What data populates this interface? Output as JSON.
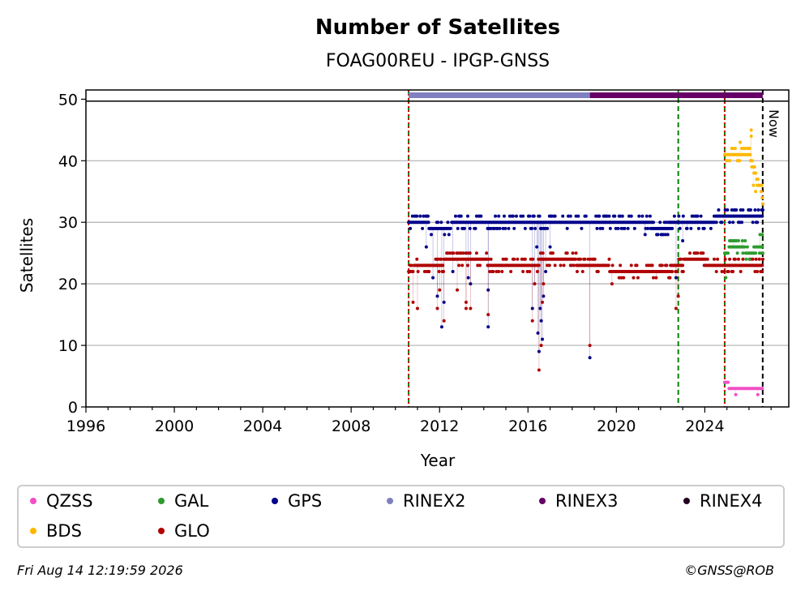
{
  "chart_data": {
    "type": "scatter",
    "title": "Number of Satellites",
    "subtitle": "FOAG00REU - IPGP-GNSS",
    "xlabel": "Year",
    "ylabel": "Satellites",
    "xlim": [
      1996,
      2027.8
    ],
    "ylim": [
      0,
      51.5
    ],
    "x_ticks": [
      "1996",
      "2000",
      "2004",
      "2008",
      "2012",
      "2016",
      "2020",
      "2024"
    ],
    "y_ticks": [
      "0",
      "10",
      "20",
      "30",
      "40",
      "50"
    ],
    "grid": "horizontal",
    "legend_position": "bottom",
    "now_label": "Now",
    "now_year": 2026.62,
    "colors": {
      "QZSS": "#f24fc6",
      "GAL": "#2e9b2e",
      "GPS": "#00008b",
      "RINEX2": "#8080c0",
      "RINEX3": "#660066",
      "RINEX4": "#220022",
      "BDS": "#ffb800",
      "GLO": "#b00000"
    },
    "events": [
      {
        "year": 2010.6,
        "color": "#008000",
        "style": "dashed"
      },
      {
        "year": 2010.6,
        "color": "#cc0000",
        "style": "dotted"
      },
      {
        "year": 2022.8,
        "color": "#008000",
        "style": "dashed"
      },
      {
        "year": 2024.9,
        "color": "#008000",
        "style": "dashed"
      },
      {
        "year": 2024.9,
        "color": "#cc0000",
        "style": "dotted"
      }
    ],
    "rinex_bars": [
      {
        "name": "RINEX2",
        "start": 2010.6,
        "end": 2018.8
      },
      {
        "name": "RINEX3",
        "start": 2018.8,
        "end": 2026.62
      }
    ],
    "series": [
      {
        "name": "GPS",
        "base": [
          [
            2010.6,
            30
          ],
          [
            2011.0,
            30
          ],
          [
            2012.0,
            29
          ],
          [
            2013.0,
            30
          ],
          [
            2014.0,
            30
          ],
          [
            2016.0,
            30
          ],
          [
            2018.0,
            30
          ],
          [
            2020.0,
            30
          ],
          [
            2021.0,
            30
          ],
          [
            2022.0,
            29
          ],
          [
            2022.8,
            30
          ],
          [
            2024.0,
            30
          ],
          [
            2024.9,
            31
          ],
          [
            2025.5,
            31
          ],
          [
            2026.62,
            31
          ]
        ],
        "spread": 1,
        "outliers": [
          [
            2011.4,
            26
          ],
          [
            2011.7,
            21
          ],
          [
            2011.9,
            18
          ],
          [
            2012.1,
            13
          ],
          [
            2012.2,
            17
          ],
          [
            2012.6,
            22
          ],
          [
            2013.2,
            25
          ],
          [
            2013.3,
            21
          ],
          [
            2013.4,
            20
          ],
          [
            2014.2,
            19
          ],
          [
            2014.2,
            13
          ],
          [
            2016.2,
            16
          ],
          [
            2016.3,
            20
          ],
          [
            2016.4,
            26
          ],
          [
            2016.45,
            12
          ],
          [
            2016.5,
            9
          ],
          [
            2016.55,
            16
          ],
          [
            2016.6,
            14
          ],
          [
            2016.65,
            11
          ],
          [
            2016.7,
            18
          ],
          [
            2016.8,
            22
          ],
          [
            2017.0,
            26
          ],
          [
            2018.8,
            8
          ],
          [
            2021.3,
            28
          ],
          [
            2022.7,
            21
          ],
          [
            2023.0,
            27
          ],
          [
            2023.2,
            29
          ]
        ]
      },
      {
        "name": "GLO",
        "base": [
          [
            2010.6,
            22
          ],
          [
            2011.0,
            23
          ],
          [
            2012.0,
            23
          ],
          [
            2012.3,
            24
          ],
          [
            2016.0,
            23
          ],
          [
            2017.0,
            24
          ],
          [
            2019.3,
            23
          ],
          [
            2020.0,
            22
          ],
          [
            2021.0,
            22
          ],
          [
            2022.0,
            22
          ],
          [
            2022.8,
            23
          ],
          [
            2023.2,
            24
          ],
          [
            2024.9,
            23
          ],
          [
            2026.62,
            23
          ]
        ],
        "spread": 1,
        "outliers": [
          [
            2010.8,
            17
          ],
          [
            2011.0,
            16
          ],
          [
            2011.9,
            16
          ],
          [
            2012.0,
            19
          ],
          [
            2012.2,
            14
          ],
          [
            2012.8,
            19
          ],
          [
            2013.2,
            17
          ],
          [
            2013.2,
            16
          ],
          [
            2013.4,
            16
          ],
          [
            2014.2,
            15
          ],
          [
            2016.2,
            14
          ],
          [
            2016.3,
            20
          ],
          [
            2016.5,
            6
          ],
          [
            2016.6,
            10
          ],
          [
            2016.65,
            17
          ],
          [
            2016.7,
            20
          ],
          [
            2018.8,
            10
          ],
          [
            2019.8,
            20
          ],
          [
            2021.8,
            21
          ],
          [
            2022.7,
            16
          ],
          [
            2022.8,
            18
          ]
        ]
      },
      {
        "name": "GAL",
        "base": [
          [
            2024.9,
            25
          ],
          [
            2025.2,
            26
          ],
          [
            2025.6,
            26
          ],
          [
            2026.0,
            25
          ],
          [
            2026.62,
            26
          ]
        ],
        "spread": 1,
        "outliers": [
          [
            2024.95,
            21
          ],
          [
            2025.3,
            27
          ],
          [
            2025.7,
            27
          ],
          [
            2026.5,
            28
          ],
          [
            2026.6,
            28
          ]
        ]
      },
      {
        "name": "BDS",
        "base": [
          [
            2024.9,
            41
          ],
          [
            2025.5,
            41
          ],
          [
            2026.0,
            41
          ],
          [
            2026.3,
            38
          ],
          [
            2026.62,
            34
          ]
        ],
        "spread": 1,
        "outliers": [
          [
            2025.6,
            43
          ],
          [
            2026.1,
            45
          ],
          [
            2026.1,
            44
          ],
          [
            2026.2,
            36
          ],
          [
            2026.3,
            35
          ]
        ]
      },
      {
        "name": "QZSS",
        "base": [
          [
            2024.9,
            4
          ],
          [
            2025.2,
            3
          ],
          [
            2026.0,
            3
          ],
          [
            2026.62,
            3
          ]
        ],
        "spread": 0,
        "outliers": [
          [
            2025.4,
            2
          ],
          [
            2026.4,
            2
          ]
        ]
      }
    ]
  },
  "legend": [
    {
      "name": "QZSS",
      "color": "#f24fc6"
    },
    {
      "name": "GAL",
      "color": "#2e9b2e"
    },
    {
      "name": "GPS",
      "color": "#00008b"
    },
    {
      "name": "RINEX2",
      "color": "#8080c0"
    },
    {
      "name": "RINEX3",
      "color": "#660066"
    },
    {
      "name": "RINEX4",
      "color": "#220022"
    },
    {
      "name": "BDS",
      "color": "#ffb800"
    },
    {
      "name": "GLO",
      "color": "#b00000"
    }
  ],
  "footer": {
    "timestamp": "Fri Aug 14 12:19:59 2026",
    "credit": "©GNSS@ROB"
  }
}
